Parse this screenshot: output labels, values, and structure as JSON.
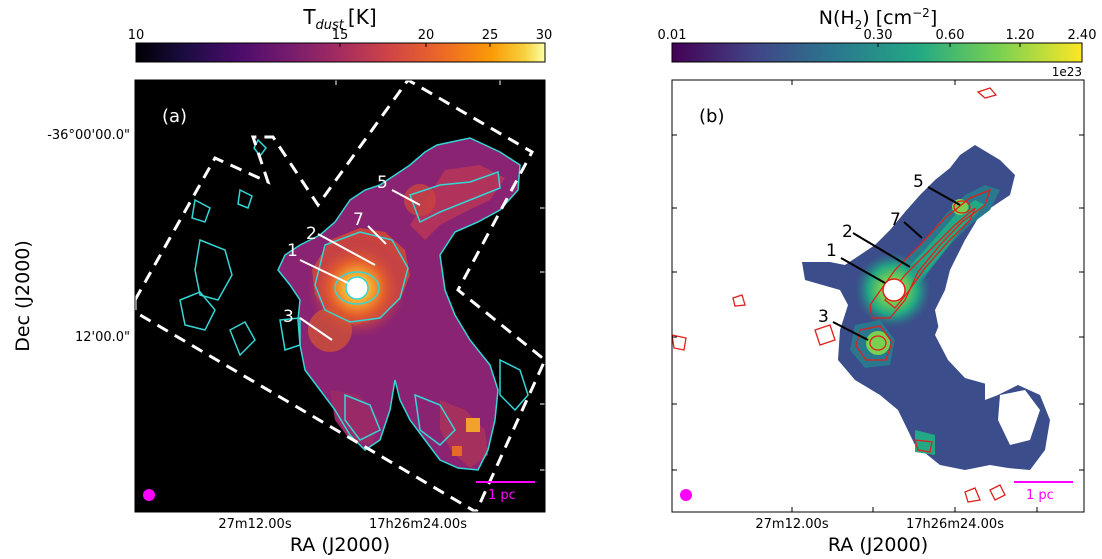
{
  "panels": {
    "a": {
      "panel_label": "(a)",
      "colorbar": {
        "title_main": "T",
        "title_sub": "dust",
        "title_unit": "[K]",
        "ticks": [
          "10",
          "15",
          "20",
          "25",
          "30"
        ]
      },
      "source_labels": [
        "1",
        "2",
        "3",
        "5",
        "7"
      ],
      "scalebar_label": "1 pc",
      "y_tick_labels": [
        "-36°00'00.0\"",
        "12'00.0\""
      ],
      "x_tick_labels": [
        "27m12.00s",
        "17h26m24.00s"
      ],
      "x_axis_label": "RA (J2000)",
      "y_axis_label": "Dec (J2000)",
      "colors": {
        "contour": "#34d6d6",
        "footprint": "#ffffff",
        "beam": "#ff00ff",
        "scalebar": "#ff00ff"
      }
    },
    "b": {
      "panel_label": "(b)",
      "colorbar": {
        "title_main": "N(H",
        "title_sub": "2",
        "title_unit": ") [cm",
        "title_exp": "−2",
        "title_end": "]",
        "ticks": [
          "0.01",
          "0.30",
          "0.60",
          "1.20",
          "2.40"
        ],
        "offset_text": "1e23"
      },
      "source_labels": [
        "1",
        "2",
        "3",
        "5",
        "7"
      ],
      "scalebar_label": "1 pc",
      "x_tick_labels": [
        "27m12.00s",
        "17h26m24.00s"
      ],
      "x_axis_label": "RA (J2000)",
      "colors": {
        "contour": "#e0201c",
        "beam": "#ff00ff",
        "scalebar": "#ff00ff"
      }
    }
  }
}
